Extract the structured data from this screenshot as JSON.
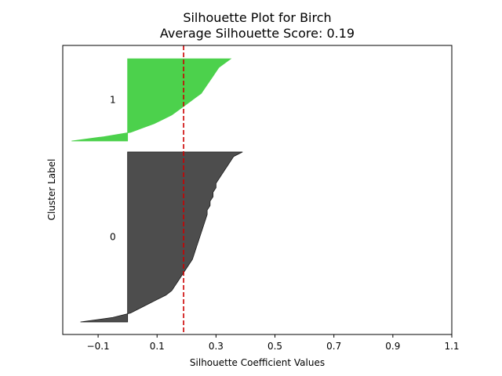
{
  "chart_data": {
    "type": "area",
    "title": "Silhouette Plot for Birch",
    "subtitle": "Average Silhouette Score: 0.19",
    "xlabel": "Silhouette Coefficient Values",
    "ylabel": "Cluster Label",
    "xlim": [
      -0.22,
      1.1
    ],
    "xticks": [
      -0.1,
      0.1,
      0.3,
      0.5,
      0.7,
      0.9,
      1.1
    ],
    "xtick_labels": [
      "−0.1",
      "0.1",
      "0.3",
      "0.5",
      "0.7",
      "0.9",
      "1.1"
    ],
    "average_score": 0.19,
    "grid": false,
    "clusters": [
      {
        "label": "0",
        "color": "#4d4d4d",
        "sorted_coefficients": [
          0.39,
          0.36,
          0.35,
          0.34,
          0.33,
          0.32,
          0.31,
          0.3,
          0.3,
          0.29,
          0.29,
          0.28,
          0.28,
          0.27,
          0.27,
          0.265,
          0.26,
          0.255,
          0.25,
          0.245,
          0.24,
          0.235,
          0.23,
          0.225,
          0.22,
          0.21,
          0.2,
          0.19,
          0.18,
          0.17,
          0.16,
          0.15,
          0.13,
          0.1,
          0.07,
          0.04,
          0.01,
          -0.05,
          -0.16
        ]
      },
      {
        "label": "1",
        "color": "#4cd14c",
        "sorted_coefficients": [
          0.35,
          0.33,
          0.31,
          0.3,
          0.29,
          0.28,
          0.27,
          0.26,
          0.25,
          0.23,
          0.21,
          0.19,
          0.17,
          0.15,
          0.12,
          0.09,
          0.05,
          0.01,
          -0.08,
          -0.19
        ]
      }
    ]
  }
}
